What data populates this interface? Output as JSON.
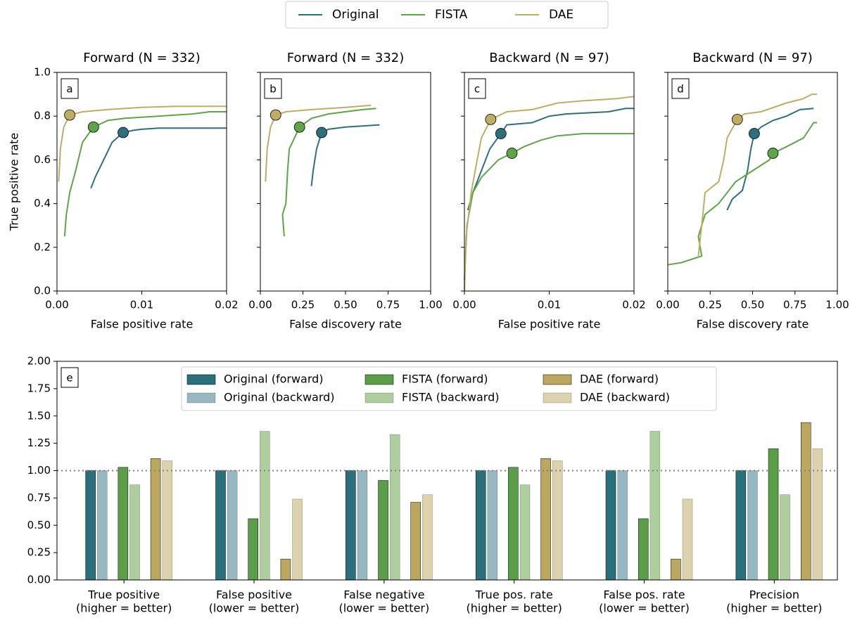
{
  "chart_data": [
    {
      "type": "line",
      "title": "Forward (N = 332)",
      "panel": "a",
      "xlabel": "False positive rate",
      "ylabel": "True positive rate",
      "xlim": [
        0,
        0.02
      ],
      "xticks": [
        {
          "value": 0,
          "label": "0.00"
        },
        {
          "value": 0.01,
          "label": "0.01"
        },
        {
          "value": 0.02,
          "label": "0.02"
        }
      ],
      "ylim": [
        0,
        1
      ],
      "yticks": [
        {
          "value": 0,
          "label": "0.0"
        },
        {
          "value": 0.2,
          "label": "0.2"
        },
        {
          "value": 0.4,
          "label": "0.4"
        },
        {
          "value": 0.6,
          "label": "0.6"
        },
        {
          "value": 0.8,
          "label": "0.8"
        },
        {
          "value": 1,
          "label": "1.0"
        }
      ],
      "ytick_labels": true,
      "series": [
        {
          "name": "Original",
          "color": "#2e6f7e",
          "x": [
            0.004,
            0.0045,
            0.0055,
            0.0065,
            0.0078,
            0.009,
            0.01,
            0.012,
            0.02
          ],
          "values": [
            0.47,
            0.52,
            0.6,
            0.68,
            0.725,
            0.735,
            0.74,
            0.745,
            0.745
          ],
          "marker_x": 0.0078,
          "marker_y": 0.725
        },
        {
          "name": "FISTA",
          "color": "#5ea54a",
          "x": [
            0.0009,
            0.0011,
            0.0015,
            0.0022,
            0.003,
            0.0043,
            0.006,
            0.008,
            0.012,
            0.016,
            0.018,
            0.02
          ],
          "values": [
            0.25,
            0.35,
            0.45,
            0.55,
            0.68,
            0.75,
            0.78,
            0.79,
            0.8,
            0.81,
            0.82,
            0.82
          ],
          "marker_x": 0.0043,
          "marker_y": 0.75
        },
        {
          "name": "DAE",
          "color": "#bfad63",
          "x": [
            0.0002,
            0.0004,
            0.0008,
            0.0015,
            0.003,
            0.006,
            0.01,
            0.014,
            0.02
          ],
          "values": [
            0.5,
            0.65,
            0.75,
            0.805,
            0.82,
            0.83,
            0.84,
            0.845,
            0.845
          ],
          "marker_x": 0.0015,
          "marker_y": 0.805
        }
      ]
    },
    {
      "type": "line",
      "title": "Forward (N = 332)",
      "panel": "b",
      "xlabel": "False discovery rate",
      "xlim": [
        0,
        1
      ],
      "xticks": [
        {
          "value": 0,
          "label": "0.00"
        },
        {
          "value": 0.25,
          "label": "0.25"
        },
        {
          "value": 0.5,
          "label": "0.50"
        },
        {
          "value": 0.75,
          "label": "0.75"
        },
        {
          "value": 1,
          "label": "1.00"
        }
      ],
      "ylim": [
        0,
        1
      ],
      "yticks": [
        0,
        0.2,
        0.4,
        0.6,
        0.8,
        1
      ],
      "ytick_labels": false,
      "series": [
        {
          "name": "Original",
          "color": "#2e6f7e",
          "x": [
            0.3,
            0.31,
            0.33,
            0.36,
            0.4,
            0.5,
            0.6,
            0.7
          ],
          "values": [
            0.48,
            0.55,
            0.65,
            0.725,
            0.74,
            0.75,
            0.755,
            0.76
          ],
          "marker_x": 0.36,
          "marker_y": 0.725
        },
        {
          "name": "FISTA",
          "color": "#5ea54a",
          "x": [
            0.14,
            0.13,
            0.15,
            0.16,
            0.17,
            0.23,
            0.3,
            0.4,
            0.5,
            0.6,
            0.68
          ],
          "values": [
            0.25,
            0.35,
            0.4,
            0.55,
            0.65,
            0.75,
            0.79,
            0.81,
            0.82,
            0.83,
            0.835
          ],
          "marker_x": 0.23,
          "marker_y": 0.75
        },
        {
          "name": "DAE",
          "color": "#bfad63",
          "x": [
            0.03,
            0.04,
            0.06,
            0.09,
            0.15,
            0.3,
            0.5,
            0.65
          ],
          "values": [
            0.5,
            0.65,
            0.75,
            0.805,
            0.82,
            0.83,
            0.84,
            0.85
          ],
          "marker_x": 0.09,
          "marker_y": 0.805
        }
      ]
    },
    {
      "type": "line",
      "title": "Backward (N = 97)",
      "panel": "c",
      "xlabel": "False positive rate",
      "xlim": [
        0,
        0.02
      ],
      "xticks": [
        {
          "value": 0,
          "label": "0.00"
        },
        {
          "value": 0.01,
          "label": "0.01"
        },
        {
          "value": 0.02,
          "label": "0.02"
        }
      ],
      "ylim": [
        0,
        1
      ],
      "yticks": [
        0,
        0.2,
        0.4,
        0.6,
        0.8,
        1
      ],
      "ytick_labels": false,
      "series": [
        {
          "name": "Original",
          "color": "#2e6f7e",
          "x": [
            0.0004,
            0.001,
            0.002,
            0.003,
            0.0043,
            0.005,
            0.008,
            0.01,
            0.012,
            0.017,
            0.019,
            0.02
          ],
          "values": [
            0.37,
            0.45,
            0.55,
            0.65,
            0.72,
            0.76,
            0.77,
            0.8,
            0.81,
            0.82,
            0.835,
            0.835
          ],
          "marker_x": 0.0043,
          "marker_y": 0.72
        },
        {
          "name": "FISTA",
          "color": "#5ea54a",
          "x": [
            0,
            0.0003,
            0.001,
            0.002,
            0.004,
            0.0056,
            0.007,
            0.009,
            0.011,
            0.014,
            0.02
          ],
          "values": [
            0.05,
            0.3,
            0.45,
            0.52,
            0.6,
            0.63,
            0.66,
            0.69,
            0.71,
            0.72,
            0.72
          ],
          "marker_x": 0.0056,
          "marker_y": 0.63
        },
        {
          "name": "DAE",
          "color": "#bfad63",
          "x": [
            0,
            0.0002,
            0.0008,
            0.0015,
            0.002,
            0.0031,
            0.005,
            0.008,
            0.011,
            0.014,
            0.018,
            0.02
          ],
          "values": [
            0,
            0.25,
            0.45,
            0.6,
            0.7,
            0.785,
            0.82,
            0.83,
            0.86,
            0.87,
            0.88,
            0.89
          ],
          "marker_x": 0.0031,
          "marker_y": 0.785
        }
      ]
    },
    {
      "type": "line",
      "title": "Backward (N = 97)",
      "panel": "d",
      "xlabel": "False discovery rate",
      "xlim": [
        0,
        1
      ],
      "xticks": [
        {
          "value": 0,
          "label": "0.00"
        },
        {
          "value": 0.25,
          "label": "0.25"
        },
        {
          "value": 0.5,
          "label": "0.50"
        },
        {
          "value": 0.75,
          "label": "0.75"
        },
        {
          "value": 1,
          "label": "1.00"
        }
      ],
      "ylim": [
        0,
        1
      ],
      "yticks": [
        0,
        0.2,
        0.4,
        0.6,
        0.8,
        1
      ],
      "ytick_labels": false,
      "series": [
        {
          "name": "Original",
          "color": "#2e6f7e",
          "x": [
            0.35,
            0.38,
            0.44,
            0.47,
            0.49,
            0.51,
            0.55,
            0.62,
            0.7,
            0.78,
            0.86
          ],
          "values": [
            0.37,
            0.42,
            0.46,
            0.55,
            0.65,
            0.72,
            0.75,
            0.78,
            0.8,
            0.83,
            0.835
          ],
          "marker_x": 0.51,
          "marker_y": 0.72
        },
        {
          "name": "FISTA",
          "color": "#5ea54a",
          "x": [
            0,
            0.08,
            0.2,
            0.18,
            0.22,
            0.3,
            0.4,
            0.5,
            0.6,
            0.62,
            0.7,
            0.8,
            0.86,
            0.88
          ],
          "values": [
            0.12,
            0.13,
            0.16,
            0.25,
            0.35,
            0.4,
            0.5,
            0.55,
            0.6,
            0.63,
            0.66,
            0.7,
            0.77,
            0.77
          ],
          "marker_x": 0.62,
          "marker_y": 0.63
        },
        {
          "name": "DAE",
          "color": "#bfad63",
          "x": [
            0.18,
            0.2,
            0.22,
            0.3,
            0.33,
            0.35,
            0.41,
            0.45,
            0.55,
            0.7,
            0.8,
            0.85,
            0.88
          ],
          "values": [
            0.16,
            0.3,
            0.45,
            0.5,
            0.6,
            0.7,
            0.785,
            0.81,
            0.82,
            0.86,
            0.88,
            0.9,
            0.9
          ],
          "marker_x": 0.41,
          "marker_y": 0.785
        }
      ]
    },
    {
      "type": "bar",
      "panel": "e",
      "categories": [
        [
          "True positive",
          "(higher = better)"
        ],
        [
          "False positive",
          "(lower = better)"
        ],
        [
          "False negative",
          "(lower = better)"
        ],
        [
          "True pos. rate",
          "(higher = better)"
        ],
        [
          "False pos. rate",
          "(lower = better)"
        ],
        [
          "Precision",
          "(higher = better)"
        ]
      ],
      "ylim": [
        0,
        2
      ],
      "yticks": [
        {
          "value": 0,
          "label": "0.00"
        },
        {
          "value": 0.25,
          "label": "0.25"
        },
        {
          "value": 0.5,
          "label": "0.50"
        },
        {
          "value": 0.75,
          "label": "0.75"
        },
        {
          "value": 1,
          "label": "1.00"
        },
        {
          "value": 1.25,
          "label": "1.25"
        },
        {
          "value": 1.5,
          "label": "1.50"
        },
        {
          "value": 1.75,
          "label": "1.75"
        },
        {
          "value": 2,
          "label": "2.00"
        }
      ],
      "reference_line": 1,
      "legend_columns": 3,
      "series": [
        {
          "name": "Original (forward)",
          "color": "#2a6f7c",
          "values": [
            1,
            1,
            1,
            1,
            1,
            1
          ]
        },
        {
          "name": "Original (backward)",
          "color": "#97b8c0",
          "values": [
            1,
            1,
            1,
            1,
            1,
            1
          ]
        },
        {
          "name": "FISTA (forward)",
          "color": "#5a9e48",
          "values": [
            1.03,
            0.56,
            0.91,
            1.03,
            0.56,
            1.2
          ]
        },
        {
          "name": "FISTA (backward)",
          "color": "#adcf9e",
          "values": [
            0.87,
            1.36,
            1.33,
            0.87,
            1.36,
            0.78
          ]
        },
        {
          "name": "DAE (forward)",
          "color": "#bba85e",
          "values": [
            1.11,
            0.19,
            0.71,
            1.11,
            0.19,
            1.44
          ]
        },
        {
          "name": "DAE (backward)",
          "color": "#dcd3ac",
          "values": [
            1.09,
            0.74,
            0.78,
            1.09,
            0.74,
            1.2
          ]
        }
      ]
    }
  ]
}
